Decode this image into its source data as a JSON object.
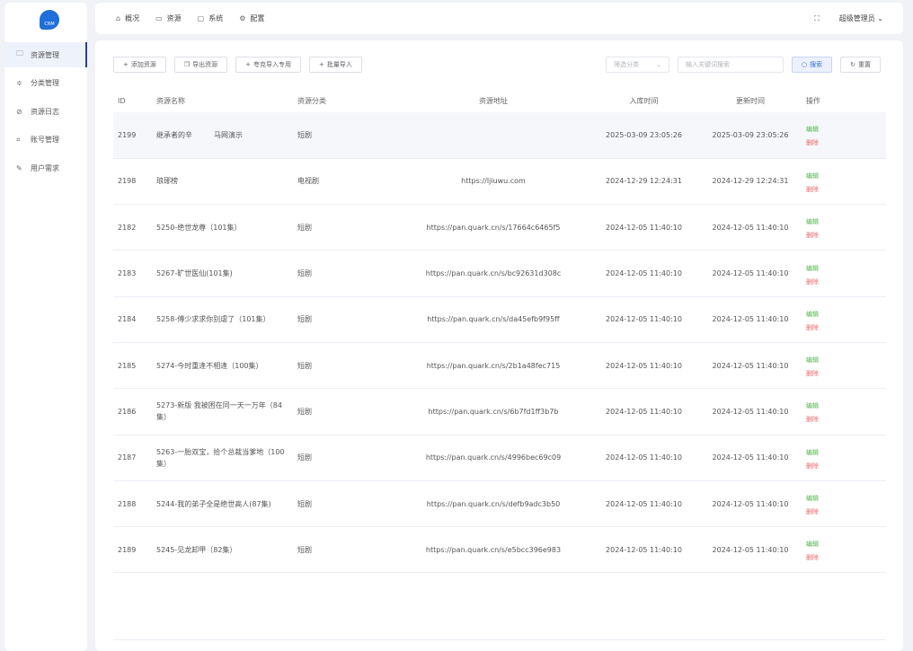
{
  "logo": {
    "text": "CRM"
  },
  "sidebar": {
    "items": [
      {
        "label": "资源管理",
        "icon": "folder-icon",
        "active": true
      },
      {
        "label": "分类管理",
        "icon": "sliders-icon"
      },
      {
        "label": "资源日志",
        "icon": "compass-icon"
      },
      {
        "label": "账号管理",
        "icon": "crop-icon"
      },
      {
        "label": "用户需求",
        "icon": "pen-icon"
      }
    ]
  },
  "topnav": {
    "tabs": [
      {
        "label": "概况",
        "icon": "home-icon"
      },
      {
        "label": "资源",
        "icon": "box-icon"
      },
      {
        "label": "系统",
        "icon": "monitor-icon"
      },
      {
        "label": "配置",
        "icon": "gear-icon"
      }
    ],
    "user": "超级管理员"
  },
  "toolbar": {
    "add": "添加资源",
    "export": "导出资源",
    "import_special": "夸克导入专用",
    "batch_import": "批量导入"
  },
  "filters": {
    "category_placeholder": "筛选分类",
    "keyword_placeholder": "输入关键词搜索",
    "search": "搜索",
    "reset": "重置"
  },
  "table": {
    "headers": [
      "ID",
      "资源名称",
      "资源分类",
      "资源地址",
      "入库时间",
      "更新时间",
      "操作"
    ],
    "edit_label": "编辑",
    "delete_label": "删除",
    "rows": [
      {
        "id": "2199",
        "name": "继承者的辛　　　马网演示",
        "cat": "短剧",
        "url": "",
        "in": "2025-03-09 23:05:26",
        "up": "2025-03-09 23:05:26"
      },
      {
        "id": "2198",
        "name": "琅琊榜",
        "cat": "电视剧",
        "url": "https://ljiuwu.com",
        "in": "2024-12-29 12:24:31",
        "up": "2024-12-29 12:24:31"
      },
      {
        "id": "2182",
        "name": "5250-绝世龙尊（101集）",
        "cat": "短剧",
        "url": "https://pan.quark.cn/s/17664c6465f5",
        "in": "2024-12-05 11:40:10",
        "up": "2024-12-05 11:40:10"
      },
      {
        "id": "2183",
        "name": "5267-旷世医仙(101集)",
        "cat": "短剧",
        "url": "https://pan.quark.cn/s/bc92631d308c",
        "in": "2024-12-05 11:40:10",
        "up": "2024-12-05 11:40:10"
      },
      {
        "id": "2184",
        "name": "5258-傅少求求你别虐了（101集）",
        "cat": "短剧",
        "url": "https://pan.quark.cn/s/da45efb9f95ff",
        "in": "2024-12-05 11:40:10",
        "up": "2024-12-05 11:40:10"
      },
      {
        "id": "2185",
        "name": "5274-今时重逢不相逢（100集）",
        "cat": "短剧",
        "url": "https://pan.quark.cn/s/2b1a48fec715",
        "in": "2024-12-05 11:40:10",
        "up": "2024-12-05 11:40:10"
      },
      {
        "id": "2186",
        "name": "5273-新版 我被困在同一天一万年（84集）",
        "cat": "短剧",
        "url": "https://pan.quark.cn/s/6b7fd1ff3b7b",
        "in": "2024-12-05 11:40:10",
        "up": "2024-12-05 11:40:10"
      },
      {
        "id": "2187",
        "name": "5263-一胎双宝，拾个总裁当爹地（100集）",
        "cat": "短剧",
        "url": "https://pan.quark.cn/s/4996bec69c09",
        "in": "2024-12-05 11:40:10",
        "up": "2024-12-05 11:40:10"
      },
      {
        "id": "2188",
        "name": "5244-我的弟子全是绝世高人(87集)",
        "cat": "短剧",
        "url": "https://pan.quark.cn/s/defb9adc3b50",
        "in": "2024-12-05 11:40:10",
        "up": "2024-12-05 11:40:10"
      },
      {
        "id": "2189",
        "name": "5245-见龙卸甲（82集）",
        "cat": "短剧",
        "url": "https://pan.quark.cn/s/e5bcc396e983",
        "in": "2024-12-05 11:40:10",
        "up": "2024-12-05 11:40:10"
      }
    ]
  }
}
